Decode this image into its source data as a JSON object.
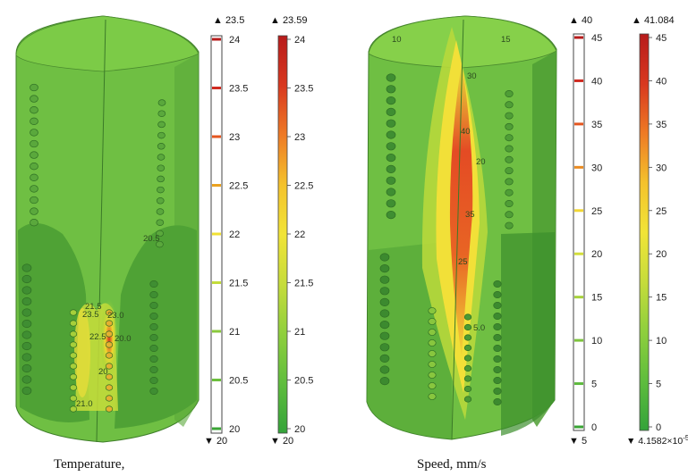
{
  "panels": [
    {
      "id": "temperature",
      "caption": "Temperature,",
      "colors": {
        "low": "#3aa535",
        "mid": "#8fd13a",
        "high": "#f0e033",
        "peak": "#d6341f"
      },
      "contour_labels": [
        "21.5",
        "23.5",
        "23.0",
        "22.5",
        "20.0",
        "20",
        "21.0",
        "20.5"
      ],
      "legends": [
        {
          "kind": "contour",
          "max_label": "▲ 23.5",
          "min_label": "▼ 20",
          "ticks": [
            "24",
            "23.5",
            "23",
            "22.5",
            "22",
            "21.5",
            "21",
            "20.5",
            "20"
          ],
          "line_colors": [
            "#b71b1b",
            "#d02a20",
            "#e5561f",
            "#eba21f",
            "#f2e133",
            "#c3dc3a",
            "#8ac93c",
            "#6cbf3d",
            "#3aa535"
          ]
        },
        {
          "kind": "surface",
          "max_label": "▲ 23.59",
          "min_label": "▼ 20",
          "ticks": [
            "24",
            "23.5",
            "23",
            "22.5",
            "22",
            "21.5",
            "21",
            "20.5",
            "20"
          ],
          "gradient": [
            "#b71b1b",
            "#d8381f",
            "#ee7a25",
            "#f4c22c",
            "#f1e437",
            "#c6dc3b",
            "#8fcf3d",
            "#5fbd3d",
            "#34a33a"
          ]
        }
      ]
    },
    {
      "id": "speed",
      "caption": "Speed, mm/s",
      "colors": {
        "low": "#3aa535",
        "mid": "#8fd13a",
        "high": "#f0e033",
        "peak": "#d6341f"
      },
      "contour_labels": [
        "10",
        "15",
        "30",
        "40",
        "20",
        "35",
        "25",
        "5.0"
      ],
      "legends": [
        {
          "kind": "contour",
          "max_label": "▲ 40",
          "min_label": "▼ 5",
          "ticks": [
            "45",
            "40",
            "35",
            "30",
            "25",
            "20",
            "15",
            "10",
            "5",
            "0"
          ],
          "line_colors": [
            "#b71b1b",
            "#d02a20",
            "#e5561f",
            "#eb8b1f",
            "#f2d733",
            "#d3de3a",
            "#a7d23c",
            "#7ec43d",
            "#5dba3d",
            "#3aa535"
          ]
        },
        {
          "kind": "surface",
          "max_label": "▲ 41.084",
          "min_label": "▼ 4.1582×10",
          "min_exp": "-5",
          "ticks": [
            "45",
            "40",
            "35",
            "30",
            "25",
            "20",
            "15",
            "10",
            "5",
            "0"
          ],
          "gradient": [
            "#b71b1b",
            "#d8381f",
            "#ee7a25",
            "#f4c22c",
            "#f1e437",
            "#c6dc3b",
            "#8fcf3d",
            "#5fbd3d",
            "#34a33a"
          ]
        }
      ]
    }
  ]
}
